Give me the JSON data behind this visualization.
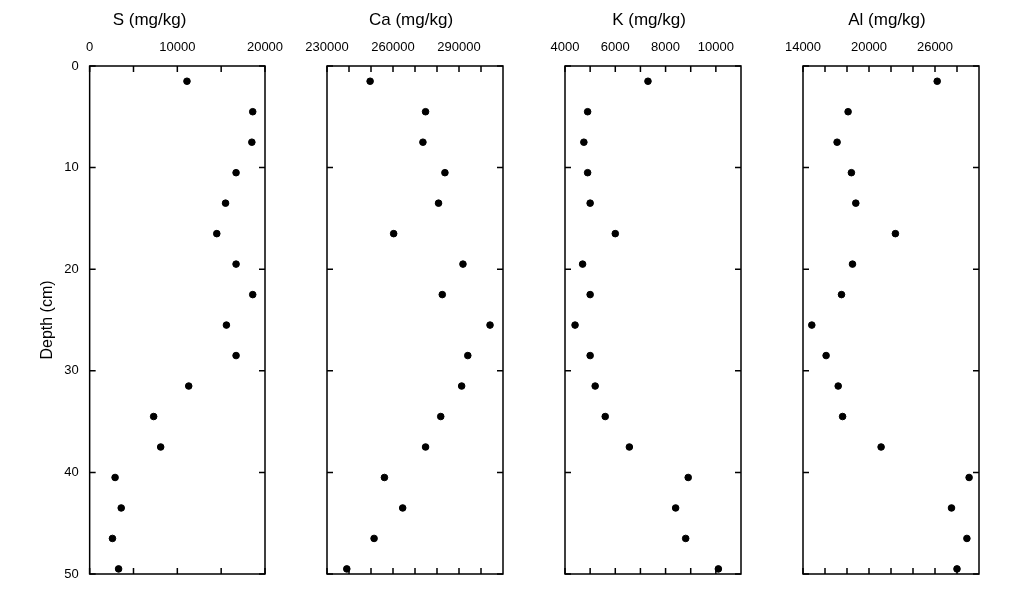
{
  "chart_data": [
    {
      "type": "scatter",
      "title": "S (mg/kg)",
      "ylabel": "Depth (cm)",
      "color": "#000000",
      "marker": "circle",
      "grid": false,
      "x": [
        11100,
        18600,
        18500,
        16700,
        15500,
        14500,
        16700,
        18600,
        15600,
        16700,
        11300,
        7300,
        8100,
        2900,
        3600,
        2600,
        3300
      ],
      "values": [
        1.5,
        4.5,
        7.5,
        10.5,
        13.5,
        16.5,
        19.5,
        22.5,
        25.5,
        28.5,
        31.5,
        34.5,
        37.5,
        40.5,
        43.5,
        46.5,
        49.5
      ],
      "xlim": [
        0,
        20000
      ],
      "xticks": [
        0,
        {
          "value": 5000,
          "label": null
        },
        10000,
        {
          "value": 15000,
          "label": null
        },
        20000
      ],
      "ylim": [
        50,
        0
      ],
      "yticks": [
        0,
        10,
        20,
        30,
        40,
        50
      ]
    },
    {
      "type": "scatter",
      "title": "Ca (mg/kg)",
      "color": "#000000",
      "marker": "circle",
      "grid": false,
      "tick_labels": "x",
      "x": [
        249600,
        274800,
        273600,
        283600,
        280700,
        260300,
        291800,
        282400,
        304100,
        294000,
        291200,
        281700,
        274800,
        256100,
        264400,
        251400,
        239000
      ],
      "values": [
        1.5,
        4.5,
        7.5,
        10.5,
        13.5,
        16.5,
        19.5,
        22.5,
        25.5,
        28.5,
        31.5,
        34.5,
        37.5,
        40.5,
        43.5,
        46.5,
        49.5
      ],
      "xlim": [
        230000,
        310000
      ],
      "xticks": [
        230000,
        {
          "value": 240000,
          "label": null
        },
        {
          "value": 250000,
          "label": null
        },
        260000,
        {
          "value": 270000,
          "label": null
        },
        {
          "value": 280000,
          "label": null
        },
        290000,
        {
          "value": 300000,
          "label": null
        }
      ],
      "ylim": [
        50,
        0
      ],
      "yticks": [
        0,
        10,
        20,
        30,
        40,
        50
      ]
    },
    {
      "type": "scatter",
      "title": "K (mg/kg)",
      "color": "#000000",
      "marker": "circle",
      "grid": false,
      "tick_labels": "x",
      "x": [
        7300,
        4900,
        4750,
        4900,
        5000,
        6000,
        4700,
        5000,
        4400,
        5000,
        5200,
        5600,
        6560,
        8900,
        8400,
        8800,
        10100
      ],
      "values": [
        1.5,
        4.5,
        7.5,
        10.5,
        13.5,
        16.5,
        19.5,
        22.5,
        25.5,
        28.5,
        31.5,
        34.5,
        37.5,
        40.5,
        43.5,
        46.5,
        49.5
      ],
      "xlim": [
        4000,
        11000
      ],
      "xticks": [
        4000,
        {
          "value": 5000,
          "label": null
        },
        6000,
        {
          "value": 7000,
          "label": null
        },
        8000,
        {
          "value": 9000,
          "label": null
        },
        10000
      ],
      "ylim": [
        50,
        0
      ],
      "yticks": [
        0,
        10,
        20,
        30,
        40,
        50
      ]
    },
    {
      "type": "scatter",
      "title": "Al (mg/kg)",
      "color": "#000000",
      "marker": "circle",
      "grid": false,
      "tick_labels": "x",
      "x": [
        26200,
        18100,
        17100,
        18400,
        18800,
        22400,
        18500,
        17500,
        14800,
        16100,
        17200,
        17600,
        21100,
        29100,
        27500,
        28900,
        28000
      ],
      "values": [
        1.5,
        4.5,
        7.5,
        10.5,
        13.5,
        16.5,
        19.5,
        22.5,
        25.5,
        28.5,
        31.5,
        34.5,
        37.5,
        40.5,
        43.5,
        46.5,
        49.5
      ],
      "xlim": [
        14000,
        30000
      ],
      "xticks": [
        14000,
        {
          "value": 16000,
          "label": null
        },
        {
          "value": 18000,
          "label": null
        },
        20000,
        {
          "value": 22000,
          "label": null
        },
        {
          "value": 24000,
          "label": null
        },
        26000,
        {
          "value": 28000,
          "label": null
        }
      ],
      "ylim": [
        50,
        0
      ],
      "yticks": [
        0,
        10,
        20,
        30,
        40,
        50
      ]
    }
  ]
}
